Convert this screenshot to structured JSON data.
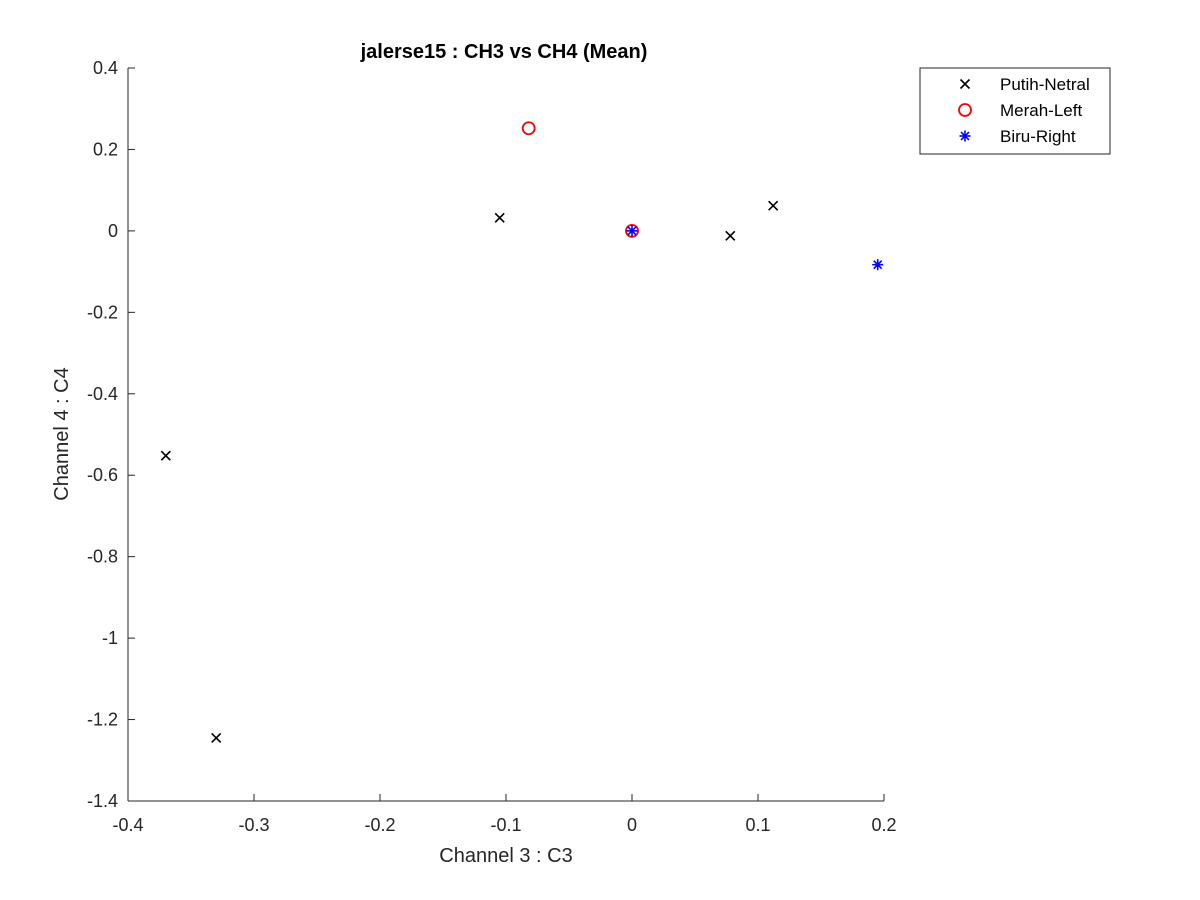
{
  "chart_data": {
    "type": "scatter",
    "title": "jalerse15 : CH3 vs CH4 (Mean)",
    "xlabel": "Channel 3 : C3",
    "ylabel": "Channel 4 : C4",
    "xlim": [
      -0.4,
      0.2
    ],
    "ylim": [
      -1.4,
      0.4
    ],
    "xticks": [
      -0.4,
      -0.3,
      -0.2,
      -0.1,
      0,
      0.1,
      0.2
    ],
    "xtick_labels": [
      "-0.4",
      "-0.3",
      "-0.2",
      "-0.1",
      "0",
      "0.1",
      "0.2"
    ],
    "yticks": [
      -1.4,
      -1.2,
      -1.0,
      -0.8,
      -0.6,
      -0.4,
      -0.2,
      0,
      0.2,
      0.4
    ],
    "ytick_labels": [
      "-1.4",
      "-1.2",
      "-1",
      "-0.8",
      "-0.6",
      "-0.4",
      "-0.2",
      "0",
      "0.2",
      "0.4"
    ],
    "grid": false,
    "legend_position": "top-right-outside",
    "series": [
      {
        "name": "Putih-Netral",
        "marker": "x",
        "color": "#000000",
        "points": [
          {
            "x": -0.37,
            "y": -0.552
          },
          {
            "x": -0.33,
            "y": -1.245
          },
          {
            "x": -0.105,
            "y": 0.032
          },
          {
            "x": 0.078,
            "y": -0.012
          },
          {
            "x": 0.112,
            "y": 0.062
          }
        ]
      },
      {
        "name": "Merah-Left",
        "marker": "o",
        "color": "#ff0000",
        "points": [
          {
            "x": -0.082,
            "y": 0.252
          },
          {
            "x": 0.0,
            "y": 0.0
          }
        ]
      },
      {
        "name": "Biru-Right",
        "marker": "*",
        "color": "#0000ff",
        "points": [
          {
            "x": 0.0,
            "y": 0.0
          },
          {
            "x": 0.195,
            "y": -0.083
          }
        ]
      }
    ]
  }
}
